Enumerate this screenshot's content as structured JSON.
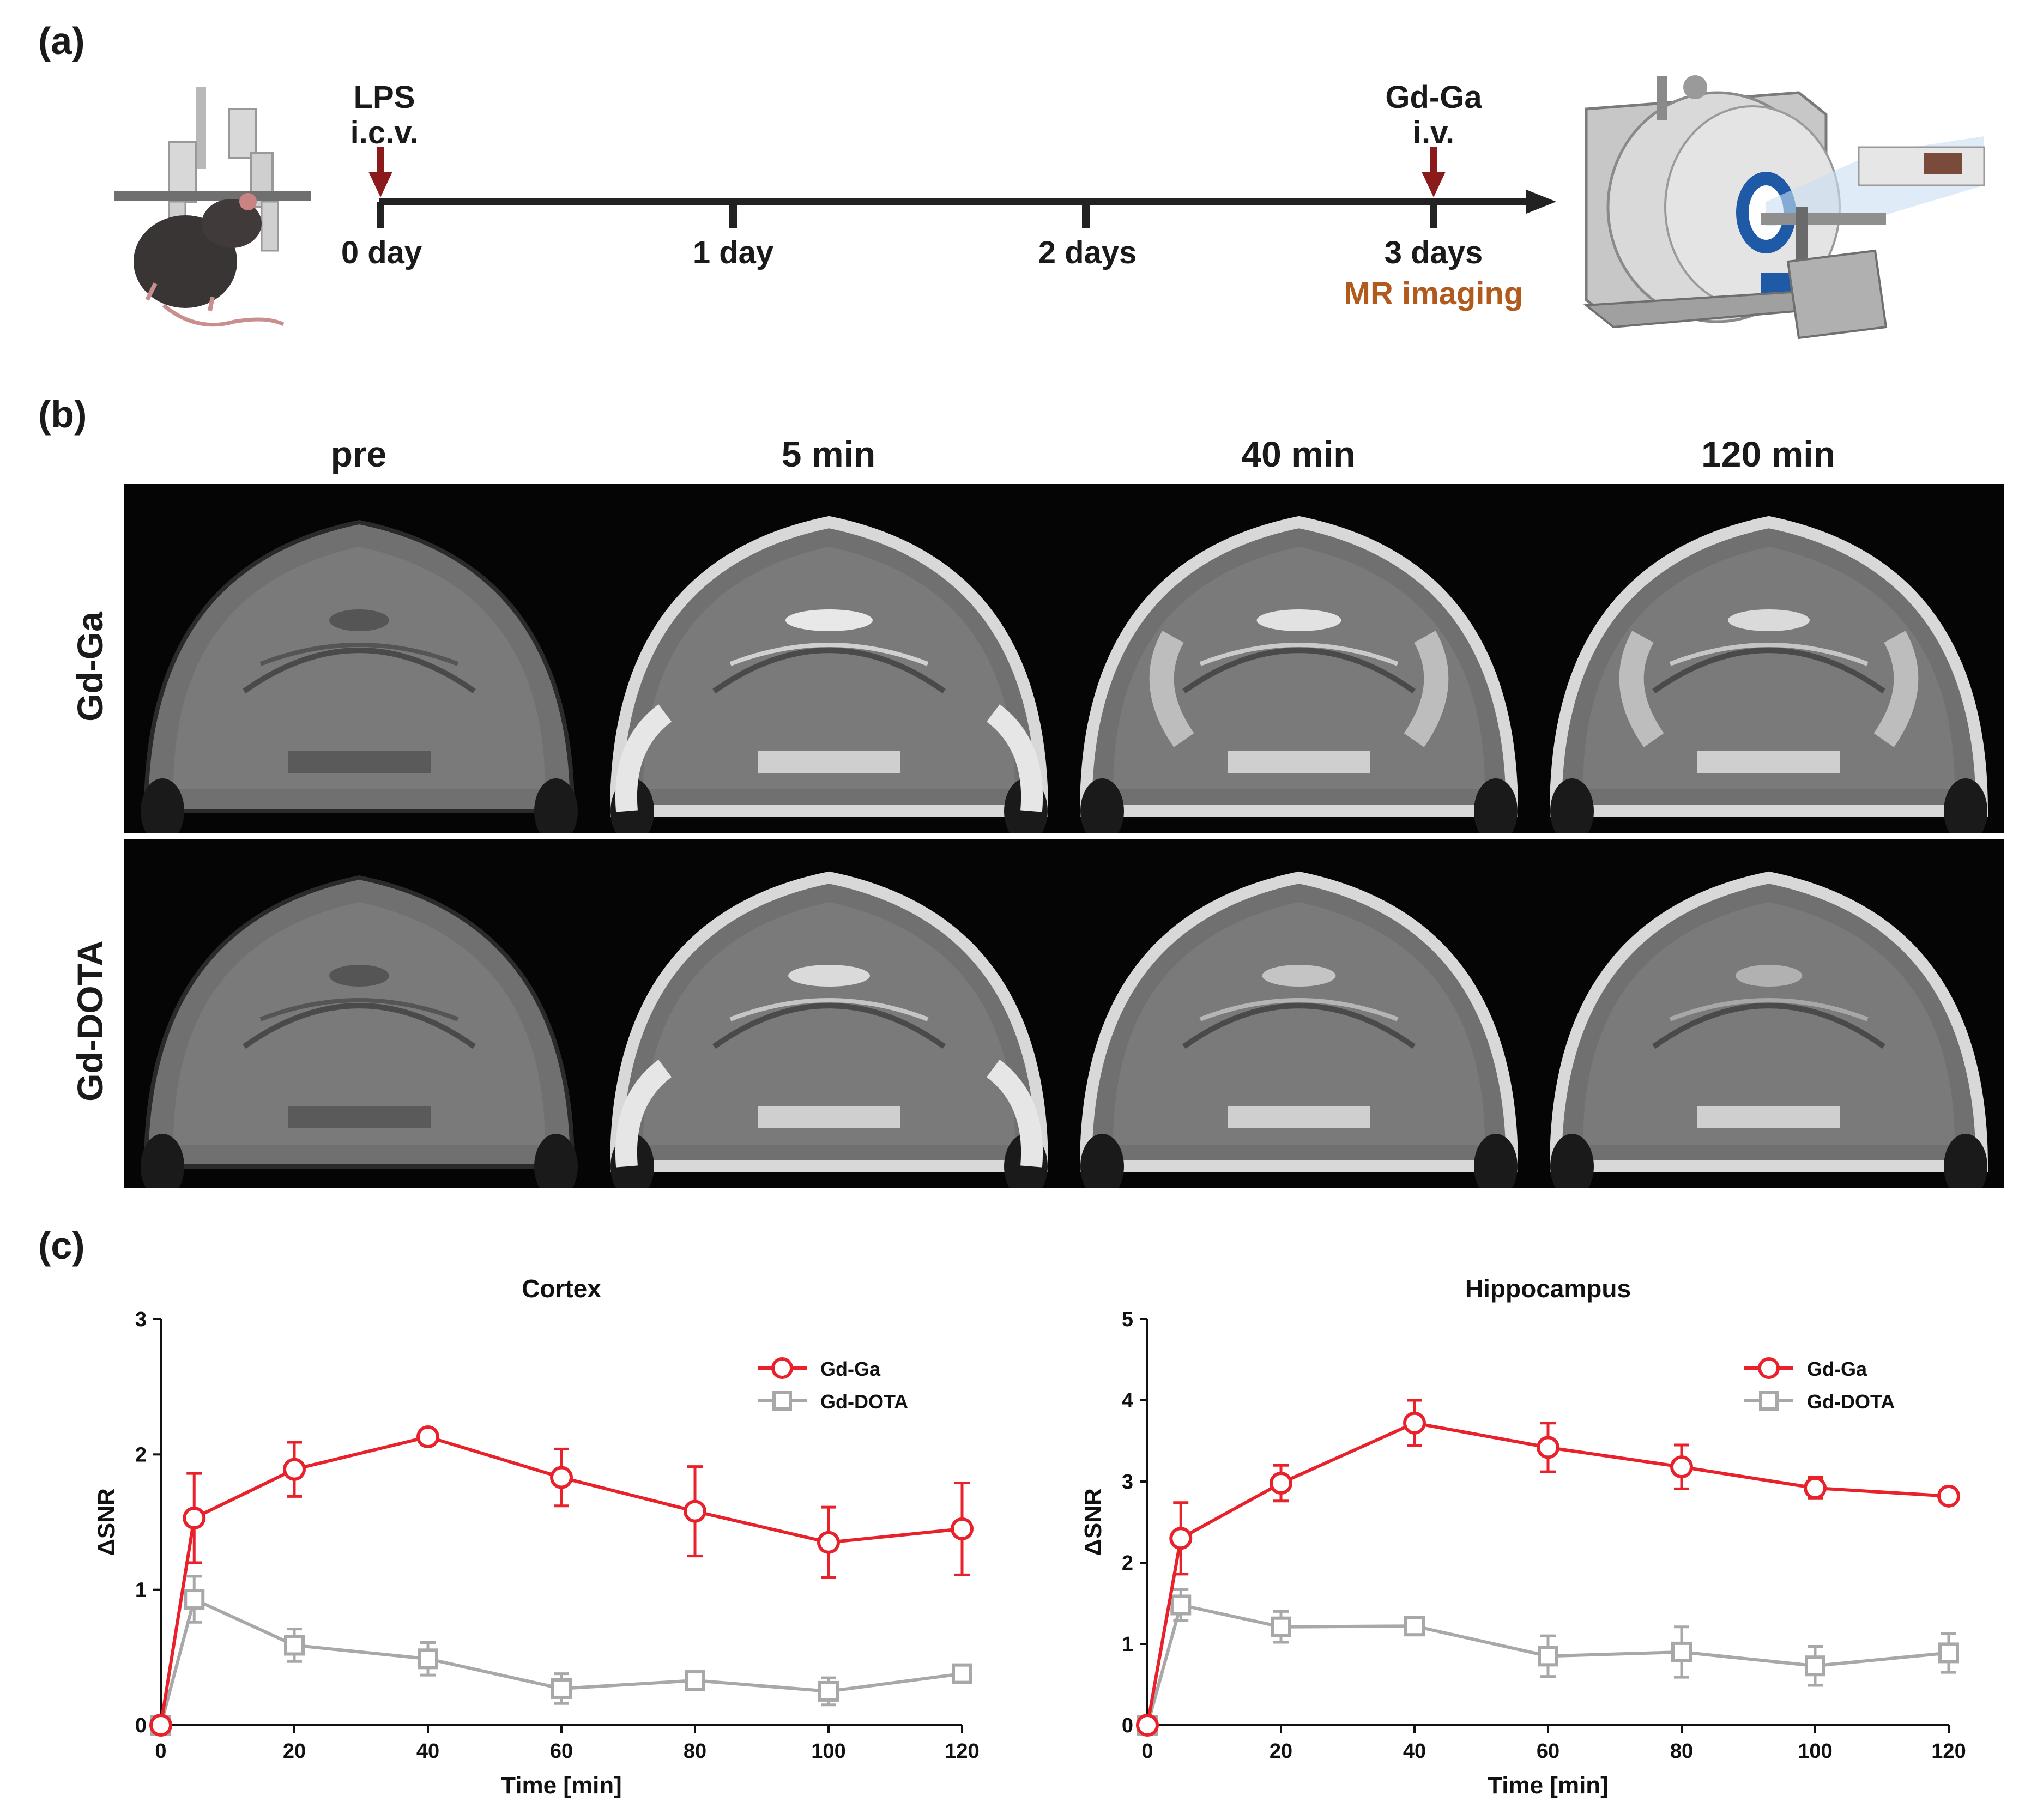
{
  "panel_a": {
    "label": "(a)",
    "events": [
      {
        "line1": "LPS",
        "line2": "i.c.v."
      },
      {
        "line1": "Gd-Ga",
        "line2": "i.v."
      }
    ],
    "ticks": [
      "0 day",
      "1 day",
      "2 days",
      "3 days"
    ],
    "imaging_label": "MR imaging",
    "colors": {
      "arrow": "#8b1a1a",
      "imaging": "#b05a1e",
      "axis": "#222222"
    }
  },
  "panel_b": {
    "label": "(b)",
    "columns": [
      "pre",
      "5 min",
      "40 min",
      "120 min"
    ],
    "rows": [
      "Gd-Ga",
      "Gd-DOTA"
    ]
  },
  "panel_c": {
    "label": "(c)"
  },
  "chart_data": [
    {
      "type": "line",
      "title": "Cortex",
      "xlabel": "Time [min]",
      "ylabel": "ΔSNR",
      "xlim": [
        0,
        120
      ],
      "ylim": [
        0,
        3
      ],
      "x_ticks": [
        0,
        20,
        40,
        60,
        80,
        100,
        120
      ],
      "y_ticks": [
        0,
        1,
        2,
        3
      ],
      "legend_position": "top-right",
      "x": [
        0,
        5,
        20,
        40,
        60,
        80,
        100,
        120
      ],
      "series": [
        {
          "name": "Gd-Ga",
          "color": "#e8212a",
          "marker": "circle",
          "values": [
            0,
            1.53,
            1.89,
            2.13,
            1.83,
            1.58,
            1.35,
            1.45
          ],
          "errors": [
            0,
            0.33,
            0.2,
            0.05,
            0.21,
            0.33,
            0.26,
            0.34
          ]
        },
        {
          "name": "Gd-DOTA",
          "color": "#a8a8a8",
          "marker": "square",
          "values": [
            0,
            0.93,
            0.59,
            0.49,
            0.27,
            0.33,
            0.25,
            0.38
          ],
          "errors": [
            0,
            0.17,
            0.12,
            0.12,
            0.11,
            0.03,
            0.1,
            0.04
          ]
        }
      ]
    },
    {
      "type": "line",
      "title": "Hippocampus",
      "xlabel": "Time [min]",
      "ylabel": "ΔSNR",
      "xlim": [
        0,
        120
      ],
      "ylim": [
        0,
        5
      ],
      "x_ticks": [
        0,
        20,
        40,
        60,
        80,
        100,
        120
      ],
      "y_ticks": [
        0,
        1,
        2,
        3,
        4,
        5
      ],
      "legend_position": "top-right",
      "x": [
        0,
        5,
        20,
        40,
        60,
        80,
        100,
        120
      ],
      "series": [
        {
          "name": "Gd-Ga",
          "color": "#e8212a",
          "marker": "circle",
          "values": [
            0,
            2.3,
            2.98,
            3.72,
            3.42,
            3.18,
            2.92,
            2.82
          ],
          "errors": [
            0,
            0.44,
            0.22,
            0.28,
            0.3,
            0.27,
            0.13,
            0.04
          ]
        },
        {
          "name": "Gd-DOTA",
          "color": "#a8a8a8",
          "marker": "square",
          "values": [
            0,
            1.48,
            1.21,
            1.22,
            0.85,
            0.9,
            0.73,
            0.89
          ],
          "errors": [
            0,
            0.19,
            0.19,
            0.05,
            0.25,
            0.31,
            0.24,
            0.24
          ]
        }
      ]
    }
  ]
}
